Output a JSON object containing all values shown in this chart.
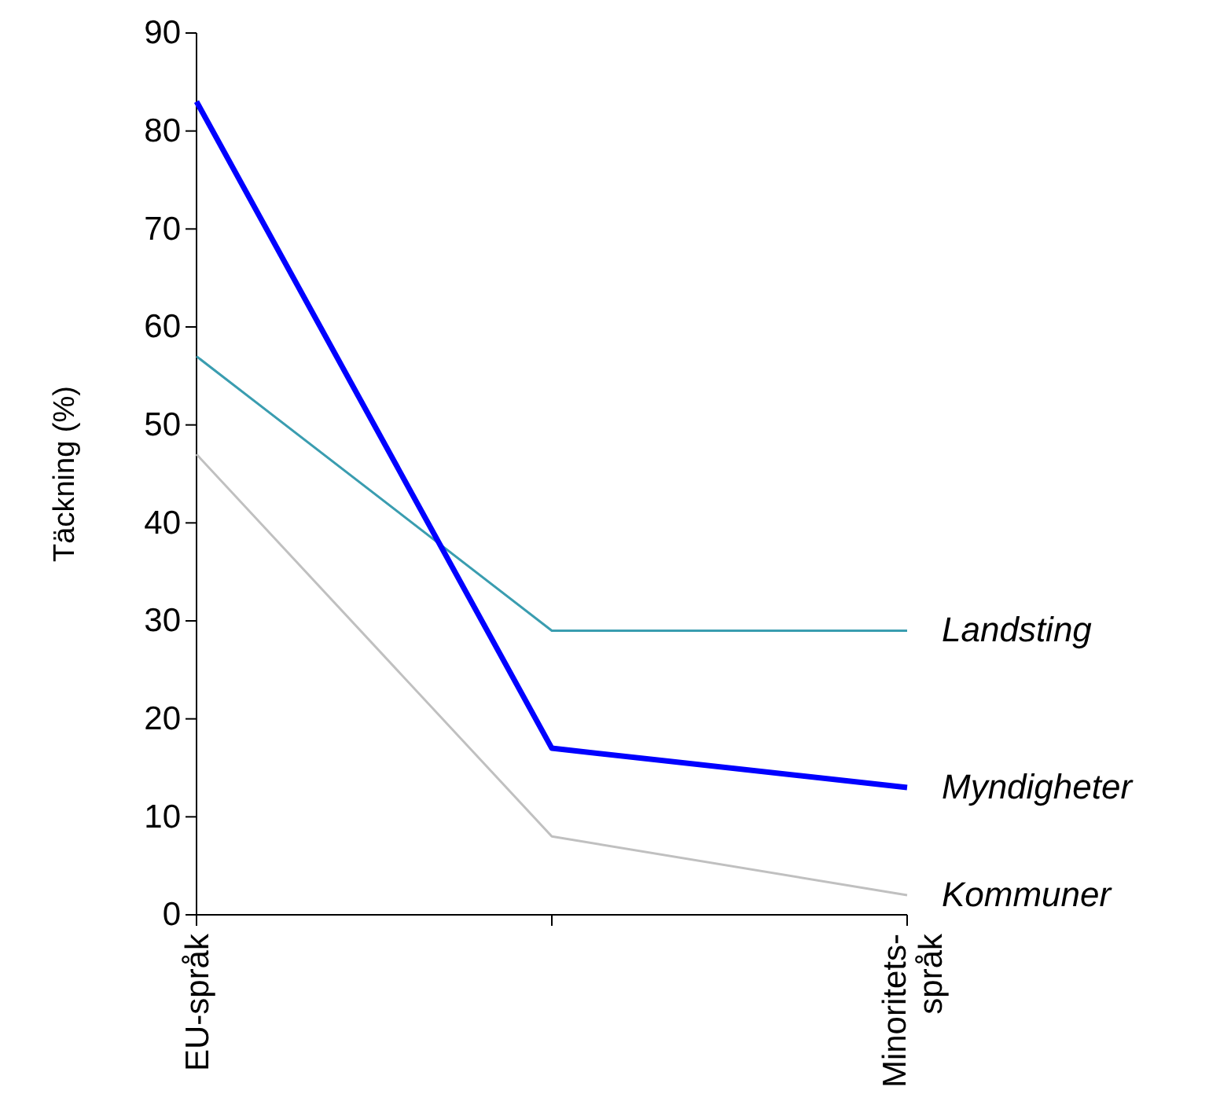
{
  "chart_data": {
    "type": "line",
    "ylabel": "Täckning (%)",
    "categories": [
      "EU-språk",
      null,
      "Minoritets-språk"
    ],
    "ylim": [
      0,
      90
    ],
    "yticks": [
      0,
      10,
      20,
      30,
      40,
      50,
      60,
      70,
      80,
      90
    ],
    "grid": false,
    "legend": false,
    "marker": "none",
    "series": [
      {
        "name": "Landsting",
        "color": "#3a9db0",
        "values": [
          57,
          29,
          29
        ]
      },
      {
        "name": "Myndigheter",
        "color": "#0000ff",
        "values": [
          83,
          17,
          13
        ]
      },
      {
        "name": "Kommuner",
        "color": "#c0c0c0",
        "values": [
          47,
          8,
          2
        ]
      }
    ]
  }
}
